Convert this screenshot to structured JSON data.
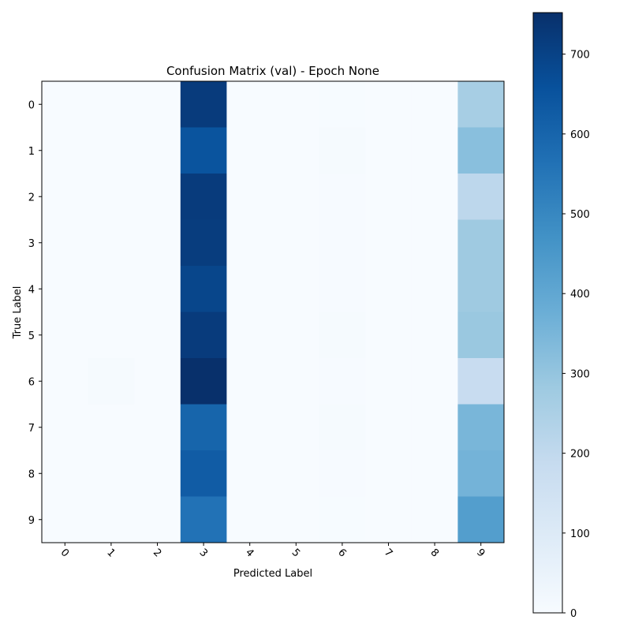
{
  "chart_data": {
    "type": "heatmap",
    "title": "Confusion Matrix (val) - Epoch None",
    "xlabel": "Predicted Label",
    "ylabel": "True Label",
    "x_categories": [
      "0",
      "1",
      "2",
      "3",
      "4",
      "5",
      "6",
      "7",
      "8",
      "9"
    ],
    "y_categories": [
      "0",
      "1",
      "2",
      "3",
      "4",
      "5",
      "6",
      "7",
      "8",
      "9"
    ],
    "values": [
      [
        0,
        0,
        0,
        720,
        0,
        0,
        2,
        0,
        0,
        260
      ],
      [
        0,
        0,
        0,
        650,
        0,
        0,
        8,
        0,
        0,
        320
      ],
      [
        0,
        0,
        0,
        720,
        0,
        0,
        4,
        0,
        0,
        210
      ],
      [
        0,
        0,
        0,
        715,
        0,
        0,
        5,
        0,
        0,
        280
      ],
      [
        0,
        0,
        0,
        690,
        0,
        0,
        5,
        0,
        0,
        280
      ],
      [
        0,
        0,
        0,
        720,
        0,
        0,
        6,
        0,
        0,
        290
      ],
      [
        0,
        6,
        0,
        752,
        0,
        0,
        3,
        0,
        0,
        180
      ],
      [
        0,
        0,
        0,
        600,
        0,
        0,
        7,
        0,
        0,
        350
      ],
      [
        0,
        0,
        0,
        625,
        0,
        0,
        3,
        0,
        0,
        360
      ],
      [
        0,
        0,
        0,
        560,
        0,
        0,
        2,
        0,
        0,
        430
      ]
    ],
    "colormap": "Blues",
    "colorbar": {
      "range": [
        0,
        752
      ],
      "ticks": [
        0,
        100,
        200,
        300,
        400,
        500,
        600,
        700
      ],
      "tick_labels": [
        "0",
        "100",
        "200",
        "300",
        "400",
        "500",
        "600",
        "700"
      ]
    },
    "x_tick_rotation": 45
  }
}
